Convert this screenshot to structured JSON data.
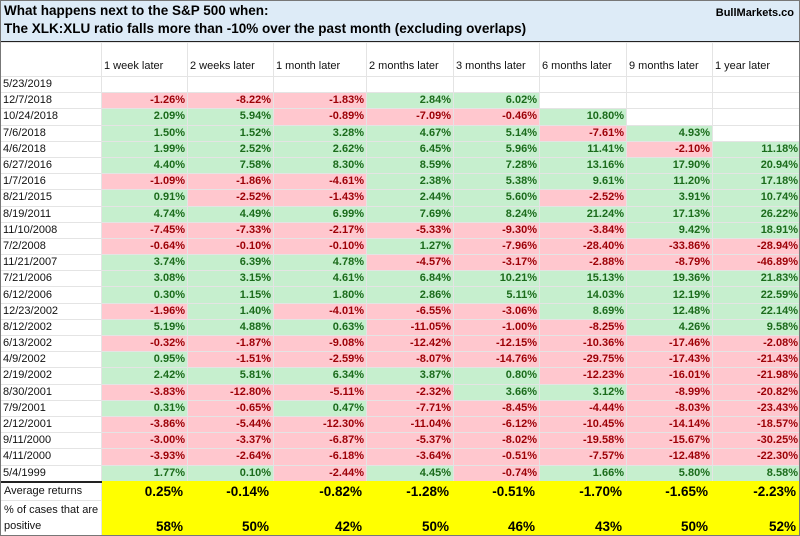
{
  "title": {
    "line1": "What happens next to the S&P 500 when:",
    "line2": "The XLK:XLU ratio falls more than -10% over the past month (excluding overlaps)",
    "brand": "BullMarkets.co"
  },
  "columns": [
    "1 week later",
    "2 weeks later",
    "1 month later",
    "2 months later",
    "3 months later",
    "6 months later",
    "9 months later",
    "1 year later"
  ],
  "rows": [
    {
      "date": "5/23/2019",
      "values": [
        "",
        "",
        "",
        "",
        "",
        "",
        "",
        ""
      ]
    },
    {
      "date": "12/7/2018",
      "values": [
        "-1.26%",
        "-8.22%",
        "-1.83%",
        "2.84%",
        "6.02%",
        "",
        "",
        ""
      ]
    },
    {
      "date": "10/24/2018",
      "values": [
        "2.09%",
        "5.94%",
        "-0.89%",
        "-7.09%",
        "-0.46%",
        "10.80%",
        "",
        ""
      ]
    },
    {
      "date": "7/6/2018",
      "values": [
        "1.50%",
        "1.52%",
        "3.28%",
        "4.67%",
        "5.14%",
        "-7.61%",
        "4.93%",
        ""
      ]
    },
    {
      "date": "4/6/2018",
      "values": [
        "1.99%",
        "2.52%",
        "2.62%",
        "6.45%",
        "5.96%",
        "11.41%",
        "-2.10%",
        "11.18%"
      ]
    },
    {
      "date": "6/27/2016",
      "values": [
        "4.40%",
        "7.58%",
        "8.30%",
        "8.59%",
        "7.28%",
        "13.16%",
        "17.90%",
        "20.94%"
      ]
    },
    {
      "date": "1/7/2016",
      "values": [
        "-1.09%",
        "-1.86%",
        "-4.61%",
        "2.38%",
        "5.38%",
        "9.61%",
        "11.20%",
        "17.18%"
      ]
    },
    {
      "date": "8/21/2015",
      "values": [
        "0.91%",
        "-2.52%",
        "-1.43%",
        "2.44%",
        "5.60%",
        "-2.52%",
        "3.91%",
        "10.74%"
      ]
    },
    {
      "date": "8/19/2011",
      "values": [
        "4.74%",
        "4.49%",
        "6.99%",
        "7.69%",
        "8.24%",
        "21.24%",
        "17.13%",
        "26.22%"
      ]
    },
    {
      "date": "11/10/2008",
      "values": [
        "-7.45%",
        "-7.33%",
        "-2.17%",
        "-5.33%",
        "-9.30%",
        "-3.84%",
        "9.42%",
        "18.91%"
      ]
    },
    {
      "date": "7/2/2008",
      "values": [
        "-0.64%",
        "-0.10%",
        "-0.10%",
        "1.27%",
        "-7.96%",
        "-28.40%",
        "-33.86%",
        "-28.94%"
      ]
    },
    {
      "date": "11/21/2007",
      "values": [
        "3.74%",
        "6.39%",
        "4.78%",
        "-4.57%",
        "-3.17%",
        "-2.88%",
        "-8.79%",
        "-46.89%"
      ]
    },
    {
      "date": "7/21/2006",
      "values": [
        "3.08%",
        "3.15%",
        "4.61%",
        "6.84%",
        "10.21%",
        "15.13%",
        "19.36%",
        "21.83%"
      ]
    },
    {
      "date": "6/12/2006",
      "values": [
        "0.30%",
        "1.15%",
        "1.80%",
        "2.86%",
        "5.11%",
        "14.03%",
        "12.19%",
        "22.59%"
      ]
    },
    {
      "date": "12/23/2002",
      "values": [
        "-1.96%",
        "1.40%",
        "-4.01%",
        "-6.55%",
        "-3.06%",
        "8.69%",
        "12.48%",
        "22.14%"
      ]
    },
    {
      "date": "8/12/2002",
      "values": [
        "5.19%",
        "4.88%",
        "0.63%",
        "-11.05%",
        "-1.00%",
        "-8.25%",
        "4.26%",
        "9.58%"
      ]
    },
    {
      "date": "6/13/2002",
      "values": [
        "-0.32%",
        "-1.87%",
        "-9.08%",
        "-12.42%",
        "-12.15%",
        "-10.36%",
        "-17.46%",
        "-2.08%"
      ]
    },
    {
      "date": "4/9/2002",
      "values": [
        "0.95%",
        "-1.51%",
        "-2.59%",
        "-8.07%",
        "-14.76%",
        "-29.75%",
        "-17.43%",
        "-21.43%"
      ]
    },
    {
      "date": "2/19/2002",
      "values": [
        "2.42%",
        "5.81%",
        "6.34%",
        "3.87%",
        "0.80%",
        "-12.23%",
        "-16.01%",
        "-21.98%"
      ]
    },
    {
      "date": "8/30/2001",
      "values": [
        "-3.83%",
        "-12.80%",
        "-5.11%",
        "-2.32%",
        "3.66%",
        "3.12%",
        "-8.99%",
        "-20.82%"
      ]
    },
    {
      "date": "7/9/2001",
      "values": [
        "0.31%",
        "-0.65%",
        "0.47%",
        "-7.71%",
        "-8.45%",
        "-4.44%",
        "-8.03%",
        "-23.43%"
      ]
    },
    {
      "date": "2/12/2001",
      "values": [
        "-3.86%",
        "-5.44%",
        "-12.30%",
        "-11.04%",
        "-6.12%",
        "-10.45%",
        "-14.14%",
        "-18.57%"
      ]
    },
    {
      "date": "9/11/2000",
      "values": [
        "-3.00%",
        "-3.37%",
        "-6.87%",
        "-5.37%",
        "-8.02%",
        "-19.58%",
        "-15.67%",
        "-30.25%"
      ]
    },
    {
      "date": "4/11/2000",
      "values": [
        "-3.93%",
        "-2.64%",
        "-6.18%",
        "-3.64%",
        "-0.51%",
        "-7.57%",
        "-12.48%",
        "-22.30%"
      ]
    },
    {
      "date": "5/4/1999",
      "values": [
        "1.77%",
        "0.10%",
        "-2.44%",
        "4.45%",
        "-0.74%",
        "1.66%",
        "5.80%",
        "8.58%"
      ]
    }
  ],
  "summary": {
    "avg_label": "Average returns",
    "avg_values": [
      "0.25%",
      "-0.14%",
      "-0.82%",
      "-1.28%",
      "-0.51%",
      "-1.70%",
      "-1.65%",
      "-2.23%"
    ],
    "pct_label": "% of cases that are positive",
    "pct_values": [
      "58%",
      "50%",
      "42%",
      "50%",
      "46%",
      "43%",
      "50%",
      "52%"
    ]
  },
  "colors": {
    "positive_bg": "#c6efce",
    "positive_text": "#1b6b1b",
    "negative_bg": "#ffc7ce",
    "negative_text": "#9c0006",
    "summary_bg": "#ffff00",
    "title_bg": "#ddebf7"
  }
}
